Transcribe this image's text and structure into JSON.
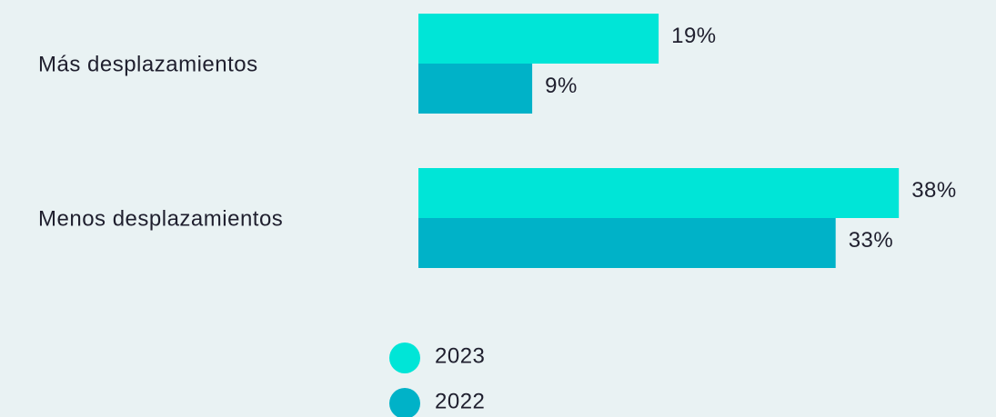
{
  "chart_data": {
    "type": "bar",
    "orientation": "horizontal",
    "categories": [
      "Más desplazamientos",
      "Menos desplazamientos"
    ],
    "series": [
      {
        "name": "2023",
        "color": "#00e5d7",
        "values": [
          19,
          38
        ],
        "value_labels": [
          "19%",
          "38%"
        ]
      },
      {
        "name": "2022",
        "color": "#00b2c8",
        "values": [
          9,
          33
        ],
        "value_labels": [
          "9%",
          "33%"
        ]
      }
    ]
  }
}
